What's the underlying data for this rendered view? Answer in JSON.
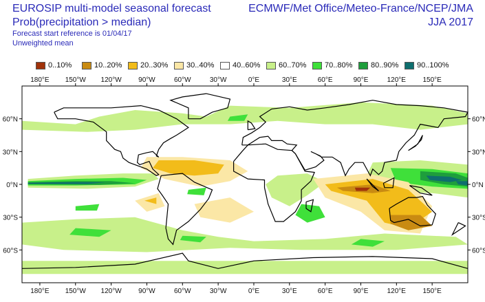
{
  "header": {
    "title": "EUROSIP multi-model seasonal forecast",
    "subtitle": "Prob(precipitation > median)",
    "start_ref": "Forecast start reference is 01/04/17",
    "mean": "Unweighted mean",
    "centres": "ECMWF/Met Office/Meteo-France/NCEP/JMA",
    "season": "JJA 2017"
  },
  "legend": [
    {
      "label": "0..10%",
      "color": "#a0320a"
    },
    {
      "label": "10..20%",
      "color": "#c98b12"
    },
    {
      "label": "20..30%",
      "color": "#f2bc1a"
    },
    {
      "label": "30..40%",
      "color": "#fbe7a6"
    },
    {
      "label": "40..60%",
      "color": "#ffffff"
    },
    {
      "label": "60..70%",
      "color": "#c8f08a"
    },
    {
      "label": "70..80%",
      "color": "#3fe03a"
    },
    {
      "label": "80..90%",
      "color": "#1e9e3c"
    },
    {
      "label": "90..100%",
      "color": "#0e6e6e"
    }
  ],
  "map": {
    "lon_labels": [
      "180°E",
      "150°W",
      "120°W",
      "90°W",
      "60°W",
      "30°W",
      "0°E",
      "30°E",
      "60°E",
      "90°E",
      "120°E",
      "150°E"
    ],
    "lat_labels": [
      "60°N",
      "30°N",
      "0°N",
      "30°S",
      "60°S"
    ],
    "lon_range": [
      -195,
      180
    ],
    "lat_range": [
      -90,
      90
    ]
  }
}
